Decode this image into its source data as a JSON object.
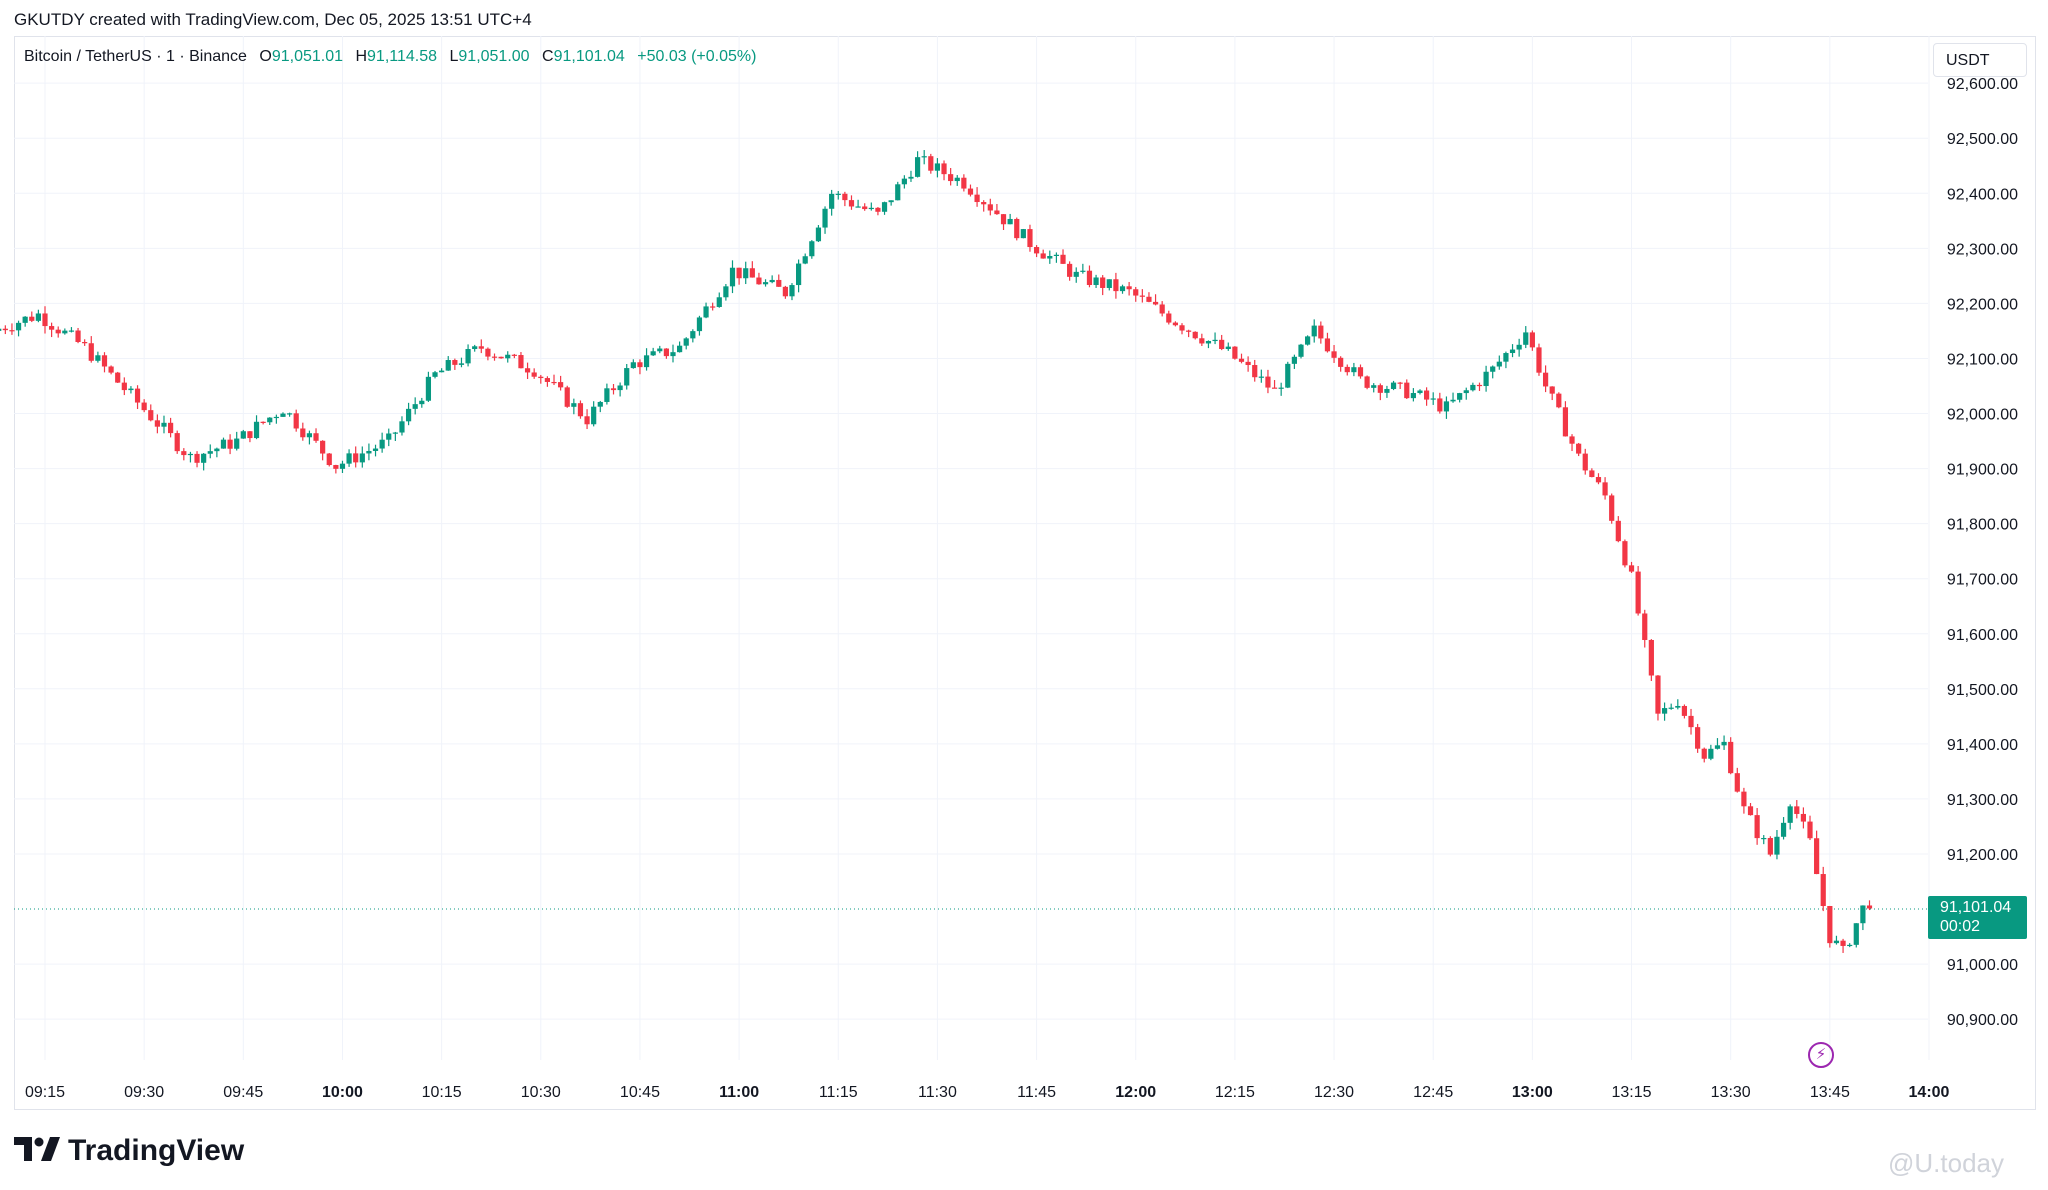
{
  "header": {
    "caption": "GKUTDY created with TradingView.com, Dec 05, 2025 13:51 UTC+4"
  },
  "legend": {
    "symbol": "Bitcoin / TetherUS · 1 · Binance",
    "o_label": "O",
    "o_value": "91,051.01",
    "h_label": "H",
    "h_value": "91,114.58",
    "l_label": "L",
    "l_value": "91,051.00",
    "c_label": "C",
    "c_value": "91,101.04",
    "change": "+50.03 (+0.05%)"
  },
  "currency": "USDT",
  "colors": {
    "up": "#089981",
    "down": "#f23645",
    "grid": "#f0f3fa",
    "accent": "#089981"
  },
  "y_axis": {
    "ticks": [
      "92,600.00",
      "92,500.00",
      "92,400.00",
      "92,300.00",
      "92,200.00",
      "92,100.00",
      "92,000.00",
      "91,900.00",
      "91,800.00",
      "91,700.00",
      "91,600.00",
      "91,500.00",
      "91,400.00",
      "91,300.00",
      "91,200.00",
      "91,000.00",
      "90,900.00"
    ]
  },
  "x_axis": {
    "ticks": [
      {
        "label": "09:15",
        "bold": false
      },
      {
        "label": "09:30",
        "bold": false
      },
      {
        "label": "09:45",
        "bold": false
      },
      {
        "label": "10:00",
        "bold": true
      },
      {
        "label": "10:15",
        "bold": false
      },
      {
        "label": "10:30",
        "bold": false
      },
      {
        "label": "10:45",
        "bold": false
      },
      {
        "label": "11:00",
        "bold": true
      },
      {
        "label": "11:15",
        "bold": false
      },
      {
        "label": "11:30",
        "bold": false
      },
      {
        "label": "11:45",
        "bold": false
      },
      {
        "label": "12:00",
        "bold": true
      },
      {
        "label": "12:15",
        "bold": false
      },
      {
        "label": "12:30",
        "bold": false
      },
      {
        "label": "12:45",
        "bold": false
      },
      {
        "label": "13:00",
        "bold": true
      },
      {
        "label": "13:15",
        "bold": false
      },
      {
        "label": "13:30",
        "bold": false
      },
      {
        "label": "13:45",
        "bold": false
      },
      {
        "label": "14:00",
        "bold": true
      }
    ]
  },
  "price_tag": {
    "price": "91,101.04",
    "countdown": "00:02"
  },
  "brand": "TradingView",
  "watermark": "@U.today",
  "icons": {
    "alert": "lightning-icon",
    "logo": "tradingview-logo-icon"
  },
  "chart_data": {
    "type": "line",
    "title": "Bitcoin / TetherUS · 1 · Binance",
    "xlabel": "",
    "ylabel": "",
    "ylim": [
      90850,
      92630
    ],
    "grid": true,
    "x": [
      "09:08",
      "09:15",
      "09:22",
      "09:30",
      "09:38",
      "09:45",
      "09:52",
      "10:00",
      "10:08",
      "10:15",
      "10:22",
      "10:30",
      "10:38",
      "10:45",
      "10:52",
      "11:00",
      "11:08",
      "11:15",
      "11:22",
      "11:28",
      "11:35",
      "11:45",
      "11:52",
      "12:00",
      "12:08",
      "12:15",
      "12:22",
      "12:28",
      "12:35",
      "12:42",
      "12:48",
      "12:55",
      "13:00",
      "13:03",
      "13:08",
      "13:12",
      "13:16",
      "13:20",
      "13:23",
      "13:27",
      "13:30",
      "13:33",
      "13:37",
      "13:40",
      "13:43",
      "13:46",
      "13:48",
      "13:51"
    ],
    "series": [
      {
        "values": [
          92150,
          92180,
          92120,
          92020,
          91920,
          91950,
          92010,
          91905,
          91950,
          92070,
          92120,
          92080,
          91990,
          92090,
          92120,
          92260,
          92220,
          92400,
          92360,
          92460,
          92420,
          92310,
          92250,
          92220,
          92160,
          92110,
          92040,
          92150,
          92060,
          92040,
          92010,
          92080,
          92150,
          92050,
          91920,
          91850,
          91700,
          91450,
          91480,
          91380,
          91400,
          91280,
          91200,
          91300,
          91220,
          91050,
          91020,
          91101
        ]
      }
    ],
    "last_price": 91101.04
  }
}
